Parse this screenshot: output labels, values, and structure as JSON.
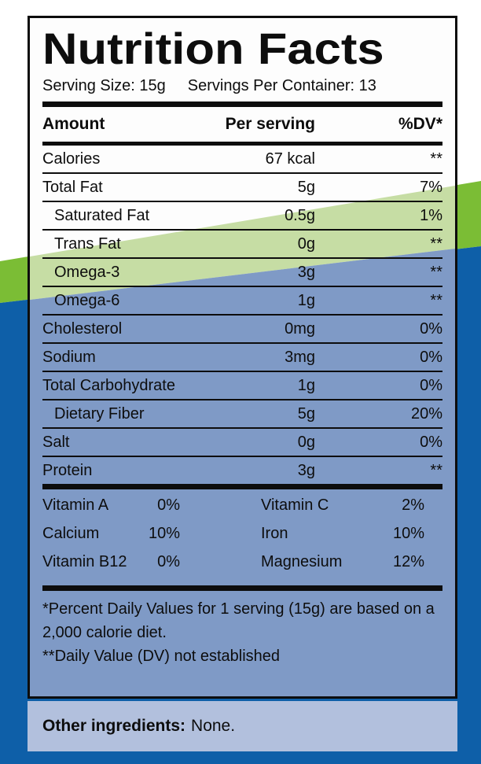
{
  "colors": {
    "stripe_green": "#7bbd35",
    "background_blue": "#0e5fa8",
    "label_green_tint": "#c6dda4",
    "label_blue_tint": "#7f9ac6",
    "panel_blue_tint": "#b2c0dd"
  },
  "label": {
    "title": "Nutrition Facts",
    "serving_size": "Serving Size: 15g",
    "servings_per_container": "Servings Per Container: 13",
    "table": {
      "columns": [
        "Amount",
        "Per serving",
        "%DV*"
      ],
      "rows": [
        {
          "name": "Calories",
          "amount": "67 kcal",
          "dv": "**"
        },
        {
          "name": "Total Fat",
          "amount": "5g",
          "dv": "7%"
        },
        {
          "name": "Saturated Fat",
          "amount": "0.5g",
          "dv": "1%"
        },
        {
          "name": "Trans Fat",
          "amount": "0g",
          "dv": "**"
        },
        {
          "name": "Omega-3",
          "amount": "3g",
          "dv": "**"
        },
        {
          "name": "Omega-6",
          "amount": "1g",
          "dv": "**"
        },
        {
          "name": "Cholesterol",
          "amount": "0mg",
          "dv": "0%"
        },
        {
          "name": "Sodium",
          "amount": "3mg",
          "dv": "0%"
        },
        {
          "name": "Total Carbohydrate",
          "amount": "1g",
          "dv": "0%"
        },
        {
          "name": "Dietary Fiber",
          "amount": "5g",
          "dv": "20%"
        },
        {
          "name": "Salt",
          "amount": "0g",
          "dv": "0%"
        },
        {
          "name": "Protein",
          "amount": "3g",
          "dv": "**"
        }
      ]
    },
    "micronutrients": [
      {
        "name": "Vitamin A",
        "dv": "0%"
      },
      {
        "name": "Vitamin C",
        "dv": "2%"
      },
      {
        "name": "Calcium",
        "dv": "10%"
      },
      {
        "name": "Iron",
        "dv": "10%"
      },
      {
        "name": "Vitamin B12",
        "dv": "0%"
      },
      {
        "name": "Magnesium",
        "dv": "12%"
      }
    ],
    "footnotes": [
      "*Percent Daily Values for 1 serving (15g) are based on a 2,000 calorie diet.",
      "**Daily Value (DV) not established"
    ]
  },
  "other_ingredients": {
    "label": "Other ingredients:",
    "value": "None."
  }
}
